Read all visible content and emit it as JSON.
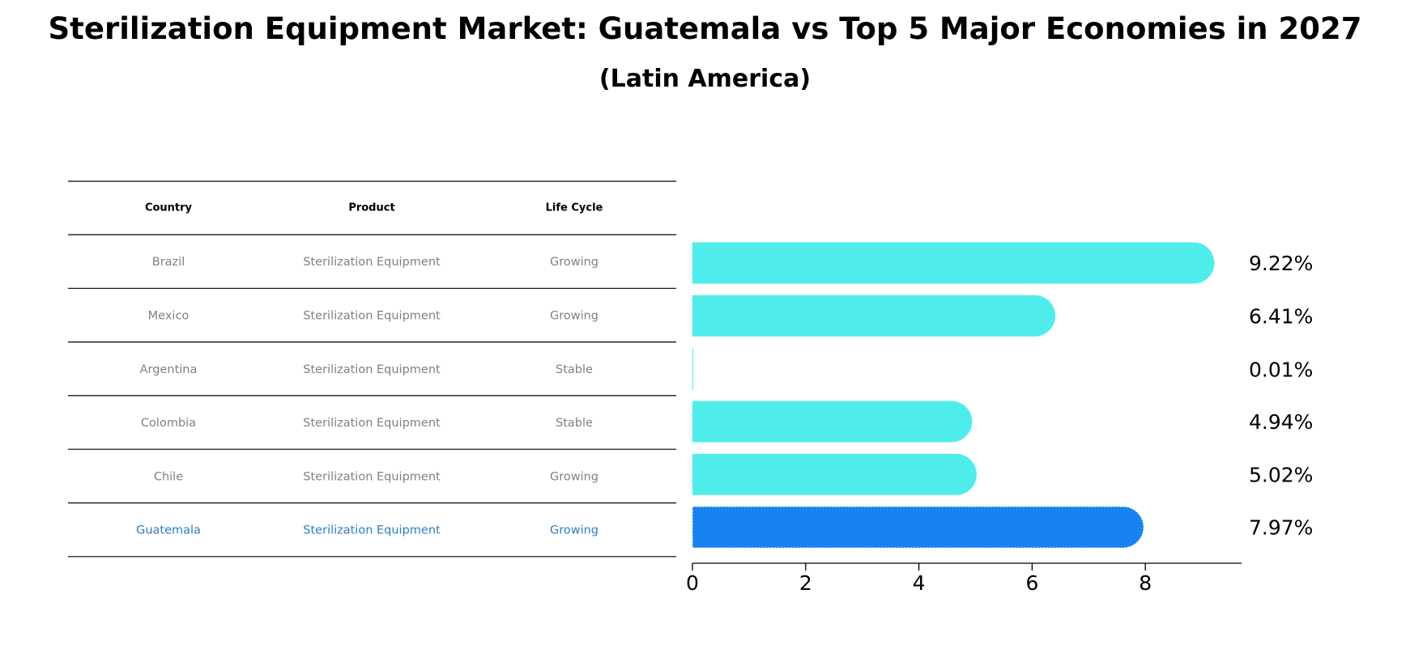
{
  "title": "Sterilization Equipment Market: Guatemala vs Top 5 Major Economies in 2027",
  "subtitle": "(Latin America)",
  "colors": {
    "bar": "#4EEDEB",
    "highlight_bar": "#1883F0",
    "highlight_text": "#2E7CC7",
    "muted_text": "#808080",
    "rule": "#000000"
  },
  "chart_data": {
    "type": "bar",
    "orientation": "horizontal",
    "categories": [
      "Brazil",
      "Mexico",
      "Argentina",
      "Colombia",
      "Chile",
      "Guatemala"
    ],
    "values": [
      9.22,
      6.41,
      0.01,
      4.94,
      5.02,
      7.97
    ],
    "value_labels": [
      "9.22%",
      "6.41%",
      "0.01%",
      "4.94%",
      "5.02%",
      "7.97%"
    ],
    "highlight": "Guatemala",
    "xlim": [
      0,
      9.7
    ],
    "xticks": [
      0,
      2,
      4,
      6,
      8
    ],
    "grid": false
  },
  "table": {
    "headers": [
      "Country",
      "Product",
      "Life Cycle"
    ],
    "rows": [
      [
        "Brazil",
        "Sterilization Equipment",
        "Growing"
      ],
      [
        "Mexico",
        "Sterilization Equipment",
        "Growing"
      ],
      [
        "Argentina",
        "Sterilization Equipment",
        "Stable"
      ],
      [
        "Colombia",
        "Sterilization Equipment",
        "Stable"
      ],
      [
        "Chile",
        "Sterilization Equipment",
        "Growing"
      ],
      [
        "Guatemala",
        "Sterilization Equipment",
        "Growing"
      ]
    ]
  }
}
